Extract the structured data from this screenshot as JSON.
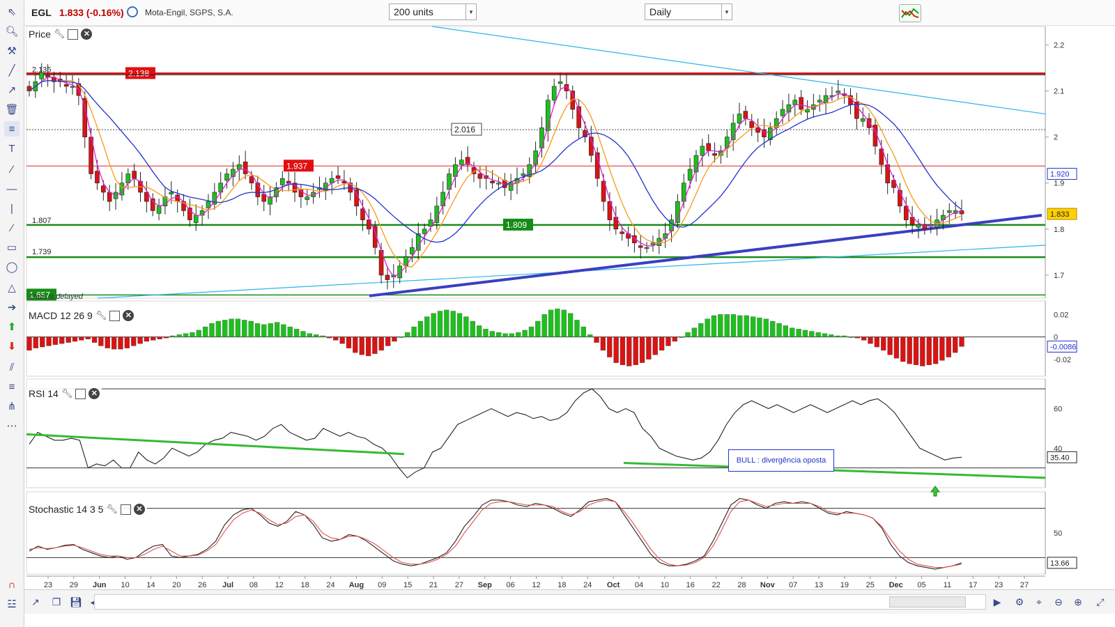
{
  "header": {
    "symbol": "EGL",
    "price_change": "1.833 (-0.16%)",
    "company": "Mota-Engil, SGPS, S.A.",
    "units_select": "200 units",
    "period_select": "Daily"
  },
  "colors": {
    "up": "#1fbf1f",
    "down": "#d81414",
    "support": "#168c16",
    "trend_blue": "#3a3fc0",
    "trend_cyan": "#2bb5e8",
    "ma_blue": "#2233cc",
    "ma_orange": "#f59b1a",
    "ma_magenta": "#e020d0",
    "macd_up": "#1fbf1f",
    "macd_down": "#d81414",
    "resistance": "#cc0000"
  },
  "icons": [
    "cursor-icon",
    "zoom-icon",
    "tools-icon",
    "trendline-icon",
    "draw-line-icon",
    "trash-icon",
    "lines-icon",
    "text-icon",
    "ray-icon",
    "horizontal-line-icon",
    "vertical-line-icon",
    "segment-icon",
    "rectangle-icon",
    "ellipse-icon",
    "triangle-icon",
    "arrow-right-icon",
    "arrow-up-icon",
    "arrow-down-icon",
    "fibonacci-icon",
    "channel-icon",
    "pitchfork-icon",
    "more-icon",
    "magnet-icon",
    "chart-type-icon"
  ],
  "panels": {
    "price": {
      "title": "Price",
      "note": "Data is delayed",
      "last_label": "1.833",
      "ma_label": "1.920",
      "y_ticks": [
        "2.2",
        "2.1",
        "2",
        "1.9",
        "1.8",
        "1.7"
      ]
    },
    "macd": {
      "title": "MACD 12 26 9",
      "last_label": "-0.0086",
      "y_ticks": [
        "0.02",
        "0",
        "-0.02"
      ]
    },
    "rsi": {
      "title": "RSI 14",
      "last_label": "35.40",
      "y_ticks": [
        "60",
        "40"
      ],
      "annotation": "BULL : divergência oposta"
    },
    "stoch": {
      "title": "Stochastic 14 3 5",
      "last_label": "13.66",
      "y_ticks": [
        "50"
      ]
    }
  },
  "x_axis": [
    "23",
    "29",
    "Jun",
    "10",
    "14",
    "20",
    "26",
    "Jul",
    "08",
    "12",
    "18",
    "24",
    "Aug",
    "09",
    "15",
    "21",
    "27",
    "Sep",
    "06",
    "12",
    "18",
    "24",
    "Oct",
    "04",
    "10",
    "16",
    "22",
    "28",
    "Nov",
    "07",
    "13",
    "19",
    "25",
    "Dec",
    "05",
    "11",
    "17",
    "23",
    "27"
  ],
  "chart_data": [
    {
      "type": "candlestick",
      "title": "Price",
      "ylim": [
        1.65,
        2.24
      ],
      "levels": [
        {
          "label": "2.138",
          "value": 2.138
        },
        {
          "label": "2.135",
          "value": 2.135
        },
        {
          "label": "2.016",
          "value": 2.016
        },
        {
          "label": "1.937",
          "value": 1.937
        },
        {
          "label": "1.809",
          "value": 1.809
        },
        {
          "label": "1.807",
          "value": 1.807
        },
        {
          "label": "1.739",
          "value": 1.739
        },
        {
          "label": "1.657",
          "value": 1.657
        }
      ],
      "close_series": [
        2.1,
        2.12,
        2.14,
        2.13,
        2.12,
        2.12,
        2.11,
        2.11,
        2.09,
        2.0,
        1.92,
        1.9,
        1.88,
        1.86,
        1.88,
        1.9,
        1.92,
        1.91,
        1.88,
        1.86,
        1.84,
        1.85,
        1.87,
        1.88,
        1.86,
        1.84,
        1.82,
        1.83,
        1.84,
        1.86,
        1.88,
        1.9,
        1.92,
        1.93,
        1.94,
        1.92,
        1.9,
        1.87,
        1.86,
        1.87,
        1.89,
        1.91,
        1.9,
        1.88,
        1.87,
        1.87,
        1.88,
        1.89,
        1.9,
        1.91,
        1.91,
        1.9,
        1.88,
        1.85,
        1.82,
        1.8,
        1.76,
        1.7,
        1.69,
        1.7,
        1.72,
        1.74,
        1.76,
        1.79,
        1.8,
        1.82,
        1.85,
        1.88,
        1.92,
        1.94,
        1.95,
        1.94,
        1.92,
        1.91,
        1.91,
        1.9,
        1.9,
        1.89,
        1.9,
        1.91,
        1.92,
        1.94,
        1.97,
        2.02,
        2.08,
        2.11,
        2.12,
        2.1,
        2.06,
        2.02,
        2.0,
        1.96,
        1.91,
        1.86,
        1.82,
        1.8,
        1.79,
        1.78,
        1.77,
        1.76,
        1.76,
        1.77,
        1.78,
        1.79,
        1.82,
        1.86,
        1.9,
        1.93,
        1.96,
        1.98,
        1.97,
        1.96,
        1.97,
        2.0,
        2.03,
        2.05,
        2.04,
        2.02,
        2.01,
        2.0,
        2.02,
        2.04,
        2.06,
        2.07,
        2.08,
        2.06,
        2.06,
        2.07,
        2.08,
        2.09,
        2.09,
        2.1,
        2.09,
        2.07,
        2.04,
        2.04,
        2.02,
        1.98,
        1.94,
        1.9,
        1.89,
        1.85,
        1.82,
        1.81,
        1.81,
        1.8,
        1.81,
        1.82,
        1.83,
        1.84,
        1.84,
        1.833
      ],
      "indicators": [
        "MA fast",
        "MA medium",
        "MA slow"
      ]
    },
    {
      "type": "bar",
      "title": "MACD 12 26 9",
      "ylim": [
        -0.035,
        0.032
      ],
      "values": [
        -0.012,
        -0.01,
        -0.009,
        -0.008,
        -0.007,
        -0.006,
        -0.005,
        -0.004,
        -0.003,
        -0.002,
        -0.005,
        -0.008,
        -0.01,
        -0.011,
        -0.011,
        -0.01,
        -0.008,
        -0.006,
        -0.004,
        -0.003,
        -0.002,
        -0.001,
        0.001,
        0.002,
        0.003,
        0.004,
        0.006,
        0.009,
        0.012,
        0.014,
        0.015,
        0.016,
        0.016,
        0.015,
        0.014,
        0.012,
        0.011,
        0.012,
        0.013,
        0.011,
        0.009,
        0.007,
        0.005,
        0.003,
        0.002,
        0.001,
        -0.001,
        -0.003,
        -0.006,
        -0.01,
        -0.014,
        -0.016,
        -0.017,
        -0.015,
        -0.012,
        -0.008,
        -0.004,
        0.0,
        0.004,
        0.009,
        0.014,
        0.018,
        0.021,
        0.023,
        0.024,
        0.023,
        0.021,
        0.018,
        0.014,
        0.01,
        0.007,
        0.005,
        0.004,
        0.003,
        0.003,
        0.004,
        0.006,
        0.009,
        0.014,
        0.02,
        0.024,
        0.025,
        0.024,
        0.021,
        0.015,
        0.009,
        0.002,
        -0.005,
        -0.012,
        -0.018,
        -0.023,
        -0.025,
        -0.026,
        -0.025,
        -0.023,
        -0.02,
        -0.016,
        -0.012,
        -0.008,
        -0.004,
        0.0,
        0.004,
        0.008,
        0.012,
        0.016,
        0.019,
        0.02,
        0.02,
        0.02,
        0.019,
        0.019,
        0.018,
        0.017,
        0.016,
        0.014,
        0.012,
        0.01,
        0.008,
        0.007,
        0.006,
        0.005,
        0.004,
        0.003,
        0.002,
        0.001,
        0.001,
        0.0,
        -0.001,
        -0.003,
        -0.006,
        -0.009,
        -0.012,
        -0.016,
        -0.019,
        -0.022,
        -0.024,
        -0.025,
        -0.026,
        -0.025,
        -0.024,
        -0.021,
        -0.018,
        -0.014,
        -0.0086
      ]
    },
    {
      "type": "line",
      "title": "RSI 14",
      "ylim": [
        20,
        75
      ],
      "levels": [
        70,
        30
      ],
      "values": [
        42,
        48,
        46,
        44,
        44,
        45,
        44,
        30,
        32,
        31,
        34,
        30,
        30,
        38,
        34,
        32,
        35,
        40,
        38,
        36,
        38,
        42,
        44,
        45,
        48,
        47,
        46,
        44,
        46,
        50,
        52,
        48,
        46,
        44,
        45,
        50,
        48,
        46,
        48,
        46,
        45,
        42,
        40,
        36,
        30,
        25,
        28,
        30,
        38,
        40,
        46,
        52,
        54,
        56,
        58,
        60,
        58,
        56,
        58,
        57,
        55,
        56,
        54,
        55,
        58,
        64,
        68,
        70,
        66,
        60,
        58,
        60,
        58,
        50,
        46,
        40,
        38,
        36,
        35,
        34,
        35,
        38,
        44,
        52,
        58,
        62,
        64,
        62,
        60,
        62,
        60,
        58,
        60,
        62,
        60,
        58,
        60,
        62,
        64,
        62,
        64,
        65,
        62,
        58,
        52,
        46,
        40,
        38,
        36,
        34,
        35,
        35.4
      ]
    },
    {
      "type": "line",
      "title": "Stochastic 14 3 5",
      "ylim": [
        0,
        100
      ],
      "levels": [
        80,
        20
      ],
      "series": [
        {
          "values": [
            28,
            34,
            30,
            32,
            35,
            36,
            30,
            26,
            22,
            20,
            22,
            18,
            20,
            28,
            34,
            36,
            22,
            20,
            22,
            24,
            30,
            40,
            60,
            72,
            78,
            80,
            72,
            62,
            58,
            64,
            76,
            72,
            60,
            44,
            40,
            42,
            48,
            46,
            40,
            32,
            24,
            16,
            12,
            10,
            12,
            16,
            20,
            26,
            40,
            58,
            70,
            84,
            90,
            90,
            88,
            84,
            82,
            86,
            84,
            80,
            74,
            70,
            78,
            88,
            90,
            92,
            88,
            72,
            56,
            40,
            24,
            14,
            10,
            10,
            12,
            16,
            22,
            40,
            62,
            84,
            92,
            90,
            84,
            80,
            86,
            88,
            86,
            88,
            86,
            80,
            74,
            72,
            76,
            74,
            72,
            68,
            56,
            36,
            22,
            14,
            10,
            8,
            6,
            8,
            10,
            13.66
          ]
        },
        {
          "values": [
            30,
            32,
            31,
            32,
            34,
            35,
            32,
            28,
            24,
            22,
            22,
            20,
            20,
            24,
            30,
            34,
            28,
            22,
            22,
            23,
            28,
            36,
            52,
            66,
            74,
            78,
            74,
            66,
            60,
            62,
            70,
            72,
            64,
            50,
            44,
            42,
            46,
            46,
            42,
            36,
            28,
            20,
            14,
            12,
            12,
            14,
            18,
            24,
            34,
            50,
            64,
            78,
            86,
            88,
            88,
            86,
            84,
            84,
            84,
            82,
            76,
            72,
            76,
            84,
            88,
            90,
            88,
            76,
            62,
            46,
            30,
            18,
            12,
            10,
            11,
            14,
            20,
            34,
            54,
            76,
            88,
            90,
            86,
            82,
            84,
            86,
            86,
            86,
            86,
            82,
            76,
            74,
            74,
            74,
            72,
            68,
            58,
            42,
            28,
            18,
            12,
            10,
            8,
            8,
            10,
            12
          ]
        }
      ]
    }
  ]
}
